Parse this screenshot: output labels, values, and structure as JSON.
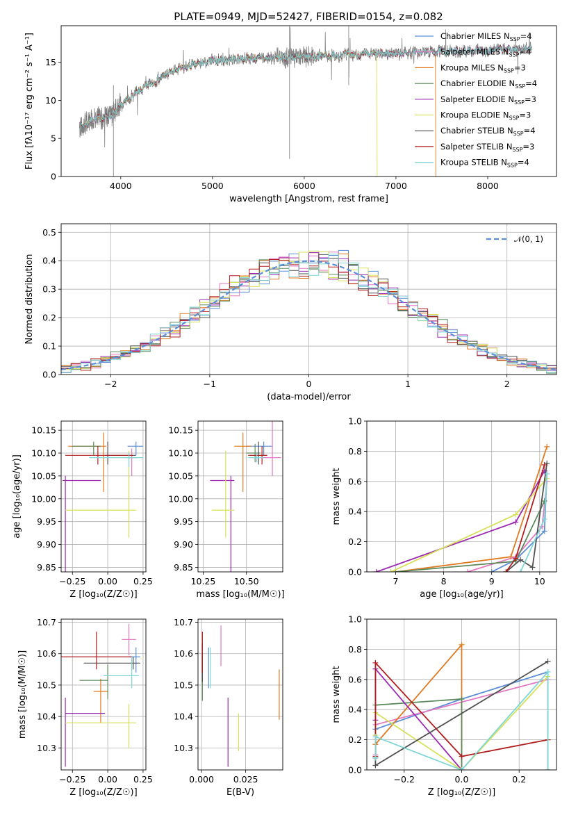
{
  "figure": {
    "title": "PLATE=0949, MJD=52427, FIBERID=0154, z=0.082"
  },
  "colors": {
    "data": "#7f7f7f",
    "gauss": "#5b8ed6",
    "grid": "#b0b0b0"
  },
  "models": [
    {
      "name": "Chabrier MILES",
      "nssp": "4",
      "color": "#5b8ed6"
    },
    {
      "name": "Salpeter MILES",
      "nssp": "4",
      "color": "#e377c2"
    },
    {
      "name": "Kroupa MILES",
      "nssp": "3",
      "color": "#e07a22"
    },
    {
      "name": "Chabrier ELODIE",
      "nssp": "4",
      "color": "#5c8a5c"
    },
    {
      "name": "Salpeter ELODIE",
      "nssp": "3",
      "color": "#9b2bb0"
    },
    {
      "name": "Kroupa ELODIE",
      "nssp": "3",
      "color": "#d6e05a"
    },
    {
      "name": "Chabrier STELIB",
      "nssp": "4",
      "color": "#505050"
    },
    {
      "name": "Salpeter STELIB",
      "nssp": "3",
      "color": "#b01e1e"
    },
    {
      "name": "Kroupa STELIB",
      "nssp": "4",
      "color": "#7fd6d6"
    }
  ],
  "legend_ssp": "SSP",
  "legend_prefix": "N",
  "legend_eq": "=",
  "chart_data": [
    {
      "id": "spectrum",
      "type": "line",
      "xlabel": "wavelength [Angstrom, rest frame]",
      "ylabel": "Flux [fλ10⁻¹⁷ erg cm⁻² s⁻¹ A⁻¹]",
      "xlim": [
        3350,
        8750
      ],
      "ylim": [
        0,
        19.8
      ],
      "xticks": [
        4000,
        5000,
        6000,
        7000,
        8000
      ],
      "yticks": [
        0,
        5,
        10,
        15
      ],
      "grid": false,
      "legend": "right",
      "continuum": [
        [
          3550,
          6.5
        ],
        [
          3700,
          7.5
        ],
        [
          3900,
          8.0
        ],
        [
          4000,
          9.3
        ],
        [
          4100,
          10.3
        ],
        [
          4300,
          12.0
        ],
        [
          4500,
          13.5
        ],
        [
          4800,
          14.7
        ],
        [
          5000,
          15.2
        ],
        [
          5300,
          15.5
        ],
        [
          5700,
          15.6
        ],
        [
          6000,
          15.7
        ],
        [
          6300,
          15.9
        ],
        [
          6700,
          16.0
        ],
        [
          7000,
          16.2
        ],
        [
          7500,
          16.4
        ],
        [
          8000,
          16.6
        ],
        [
          8500,
          16.8
        ]
      ]
    },
    {
      "id": "residuals",
      "type": "line",
      "xlabel": "(data-model)/error",
      "ylabel": "Normed distribution",
      "xlim": [
        -2.5,
        2.5
      ],
      "ylim": [
        0,
        0.53
      ],
      "xticks": [
        -2,
        -1,
        0,
        1,
        2
      ],
      "yticks": [
        0.0,
        0.1,
        0.2,
        0.3,
        0.4,
        0.5
      ],
      "grid": true,
      "legend": "upper right",
      "gauss_label": "𝒩(0, 1)",
      "bin_width": 0.1
    },
    {
      "id": "age-vs-Z",
      "type": "scatter",
      "xlabel": "Z [log₁₀(Z/Z☉)]",
      "ylabel": "age  [log₁₀(age/yr)]",
      "xlim": [
        -0.33,
        0.27
      ],
      "ylim": [
        9.84,
        10.17
      ],
      "xticks": [
        -0.25,
        0.0,
        0.25
      ],
      "yticks": [
        9.85,
        9.9,
        9.95,
        10.0,
        10.05,
        10.1,
        10.15
      ],
      "grid": true,
      "points": [
        {
          "x": 0.2,
          "y": 10.115,
          "xerr": [
            0.06,
            0.05
          ],
          "yerr": [
            0.02,
            0.01
          ]
        },
        {
          "x": 0.17,
          "y": 10.09,
          "xerr": [
            0.05,
            0.04
          ],
          "yerr": [
            0.04,
            0.02
          ]
        },
        {
          "x": -0.03,
          "y": 10.115,
          "xerr": [
            0.25,
            0.02
          ],
          "yerr": [
            0.1,
            0.03
          ]
        },
        {
          "x": -0.1,
          "y": 10.115,
          "xerr": [
            0.15,
            0.05
          ],
          "yerr": [
            0.02,
            0.01
          ]
        },
        {
          "x": -0.3,
          "y": 10.04,
          "xerr": [
            0.02,
            0.25
          ],
          "yerr": [
            0.2,
            0.01
          ]
        },
        {
          "x": 0.15,
          "y": 9.975,
          "xerr": [
            0.45,
            0.05
          ],
          "yerr": [
            0.06,
            0.13
          ]
        },
        {
          "x": 0.0,
          "y": 10.095,
          "xerr": [
            0.02,
            0.2
          ],
          "yerr": [
            0.02,
            0.03
          ]
        },
        {
          "x": -0.07,
          "y": 10.095,
          "xerr": [
            0.23,
            0.25
          ],
          "yerr": [
            0.02,
            0.02
          ]
        },
        {
          "x": 0.15,
          "y": 10.09,
          "xerr": [
            0.28,
            0.1
          ],
          "yerr": [
            0.02,
            0.01
          ]
        }
      ]
    },
    {
      "id": "age-vs-mass",
      "type": "scatter",
      "xlabel": "mass [log₁₀(M/M☉)]",
      "ylabel": "",
      "xlim": [
        10.22,
        10.71
      ],
      "ylim": [
        9.84,
        10.17
      ],
      "xticks": [
        10.25,
        10.5
      ],
      "yticks": [
        9.85,
        9.9,
        9.95,
        10.0,
        10.05,
        10.1,
        10.15
      ],
      "grid": true,
      "points": [
        {
          "x": 10.6,
          "y": 10.115,
          "xerr": [
            0.1,
            0.05
          ],
          "yerr": [
            0.02,
            0.01
          ]
        },
        {
          "x": 10.65,
          "y": 10.09,
          "xerr": [
            0.06,
            0.05
          ],
          "yerr": [
            0.04,
            0.12
          ]
        },
        {
          "x": 10.48,
          "y": 10.115,
          "xerr": [
            0.05,
            0.05
          ],
          "yerr": [
            0.1,
            0.03
          ]
        },
        {
          "x": 10.55,
          "y": 10.1,
          "xerr": [
            0.05,
            0.03
          ],
          "yerr": [
            0.02,
            0.02
          ]
        },
        {
          "x": 10.41,
          "y": 10.04,
          "xerr": [
            0.12,
            0.02
          ],
          "yerr": [
            0.2,
            0.01
          ]
        },
        {
          "x": 10.38,
          "y": 9.975,
          "xerr": [
            0.08,
            0.05
          ],
          "yerr": [
            0.06,
            0.13
          ]
        },
        {
          "x": 10.57,
          "y": 10.095,
          "xerr": [
            0.05,
            0.05
          ],
          "yerr": [
            0.02,
            0.03
          ]
        },
        {
          "x": 10.59,
          "y": 10.095,
          "xerr": [
            0.08,
            0.03
          ],
          "yerr": [
            0.02,
            0.02
          ]
        },
        {
          "x": 10.56,
          "y": 10.09,
          "xerr": [
            0.05,
            0.04
          ],
          "yerr": [
            0.01,
            0.01
          ]
        }
      ]
    },
    {
      "id": "weight-vs-age",
      "type": "line",
      "xlabel": "age  [log₁₀(age/yr)]",
      "ylabel": "mass weight",
      "xlim": [
        6.4,
        10.35
      ],
      "ylim": [
        0,
        1
      ],
      "xticks": [
        7,
        8,
        9,
        10
      ],
      "yticks": [
        0.0,
        0.2,
        0.4,
        0.6,
        0.8,
        1.0
      ],
      "grid": true,
      "series": [
        {
          "x": [
            9.0,
            9.5,
            10.1,
            10.15
          ],
          "y": [
            0.0,
            0.08,
            0.27,
            0.65
          ]
        },
        {
          "x": [
            8.5,
            9.5,
            10.05,
            10.15
          ],
          "y": [
            0.0,
            0.1,
            0.3,
            0.6
          ]
        },
        {
          "x": [
            7.0,
            9.4,
            10.15
          ],
          "y": [
            0.0,
            0.1,
            0.83
          ]
        },
        {
          "x": [
            7.0,
            9.5,
            10.1
          ],
          "y": [
            0.0,
            0.07,
            0.47
          ]
        },
        {
          "x": [
            6.6,
            9.5,
            10.1
          ],
          "y": [
            0.0,
            0.33,
            0.67
          ]
        },
        {
          "x": [
            6.9,
            9.5,
            10.15
          ],
          "y": [
            0.0,
            0.38,
            0.62
          ]
        },
        {
          "x": [
            9.3,
            9.6,
            9.85,
            10.15
          ],
          "y": [
            0.0,
            0.08,
            0.03,
            0.72
          ]
        },
        {
          "x": [
            9.3,
            9.5,
            10.1
          ],
          "y": [
            0.0,
            0.09,
            0.71
          ]
        },
        {
          "x": [
            9.6,
            10.1,
            10.15
          ],
          "y": [
            0.0,
            0.35,
            0.65
          ]
        }
      ]
    },
    {
      "id": "mass-vs-Z",
      "type": "scatter",
      "xlabel": "Z [log₁₀(Z/Z☉)]",
      "ylabel": "mass [log₁₀(M/M☉)]",
      "xlim": [
        -0.33,
        0.27
      ],
      "ylim": [
        10.23,
        10.71
      ],
      "xticks": [
        -0.25,
        0.0,
        0.25
      ],
      "yticks": [
        10.3,
        10.4,
        10.5,
        10.6,
        10.7
      ],
      "grid": true,
      "points": [
        {
          "x": 0.2,
          "y": 10.59,
          "xerr": [
            0.05,
            0.03
          ],
          "yerr": [
            0.05,
            0.03
          ]
        },
        {
          "x": 0.15,
          "y": 10.645,
          "xerr": [
            0.05,
            0.05
          ],
          "yerr": [
            0.05,
            0.05
          ]
        },
        {
          "x": -0.05,
          "y": 10.48,
          "xerr": [
            0.05,
            0.05
          ],
          "yerr": [
            0.1,
            0.04
          ]
        },
        {
          "x": 0.0,
          "y": 10.515,
          "xerr": [
            0.2,
            0.0
          ],
          "yerr": [
            0.06,
            0.05
          ]
        },
        {
          "x": -0.3,
          "y": 10.41,
          "xerr": [
            0.0,
            0.28
          ],
          "yerr": [
            0.17,
            0.05
          ]
        },
        {
          "x": 0.15,
          "y": 10.38,
          "xerr": [
            0.45,
            0.05
          ],
          "yerr": [
            0.08,
            0.06
          ]
        },
        {
          "x": 0.18,
          "y": 10.57,
          "xerr": [
            0.35,
            0.05
          ],
          "yerr": [
            0.02,
            0.02
          ]
        },
        {
          "x": -0.08,
          "y": 10.59,
          "xerr": [
            0.25,
            0.25
          ],
          "yerr": [
            0.04,
            0.08
          ]
        },
        {
          "x": 0.17,
          "y": 10.53,
          "xerr": [
            0.2,
            0.05
          ],
          "yerr": [
            0.04,
            0.06
          ]
        }
      ]
    },
    {
      "id": "mass-vs-EBV",
      "type": "scatter",
      "xlabel": "E(B-V)",
      "ylabel": "",
      "xlim": [
        -0.002,
        0.046
      ],
      "ylim": [
        10.23,
        10.71
      ],
      "xticks": [
        0.0,
        0.025
      ],
      "yticks": [
        10.3,
        10.4,
        10.5,
        10.6,
        10.7
      ],
      "grid": true,
      "points": [
        {
          "x": 0.004,
          "y": 10.56,
          "xerr": [
            0,
            0
          ],
          "yerr": [
            0.07,
            0.06
          ]
        },
        {
          "x": 0.011,
          "y": 10.64,
          "xerr": [
            0,
            0
          ],
          "yerr": [
            0.08,
            0.05
          ]
        },
        {
          "x": 0.044,
          "y": 10.47,
          "xerr": [
            0,
            0
          ],
          "yerr": [
            0.08,
            0.08
          ]
        },
        {
          "x": 0.0005,
          "y": 10.53,
          "xerr": [
            0,
            0
          ],
          "yerr": [
            0.08,
            0.07
          ]
        },
        {
          "x": 0.015,
          "y": 10.36,
          "xerr": [
            0,
            0
          ],
          "yerr": [
            0.12,
            0.1
          ]
        },
        {
          "x": 0.021,
          "y": 10.35,
          "xerr": [
            0,
            0
          ],
          "yerr": [
            0.06,
            0.06
          ]
        },
        {
          "x": 0.0005,
          "y": 10.58,
          "xerr": [
            0,
            0
          ],
          "yerr": [
            0.07,
            0.05
          ]
        },
        {
          "x": 0.0005,
          "y": 10.6,
          "xerr": [
            0,
            0
          ],
          "yerr": [
            0.06,
            0.07
          ]
        },
        {
          "x": 0.005,
          "y": 10.55,
          "xerr": [
            0,
            0
          ],
          "yerr": [
            0.06,
            0.07
          ]
        }
      ]
    },
    {
      "id": "weight-vs-Z",
      "type": "line",
      "xlabel": "Z [log₁₀(Z/Z☉)]",
      "ylabel": "mass weight",
      "xlim": [
        -0.33,
        0.33
      ],
      "ylim": [
        0,
        1
      ],
      "xticks": [
        -0.2,
        0.0,
        0.2
      ],
      "yticks": [
        0.0,
        0.2,
        0.4,
        0.6,
        0.8,
        1.0
      ],
      "grid": true,
      "series": [
        {
          "x": [
            -0.3,
            -0.3,
            0.0,
            0.3
          ],
          "y": [
            0.08,
            0.27,
            0.47,
            0.65
          ]
        },
        {
          "x": [
            -0.3,
            -0.3,
            0.3,
            0.3
          ],
          "y": [
            0.1,
            0.3,
            0.6,
            0.0
          ]
        },
        {
          "x": [
            -0.3,
            -0.3,
            0.0,
            0.0
          ],
          "y": [
            0.17,
            0.17,
            0.83,
            0.0
          ]
        },
        {
          "x": [
            -0.3,
            -0.3,
            0.0,
            0.0
          ],
          "y": [
            0.08,
            0.43,
            0.47,
            0.0
          ]
        },
        {
          "x": [
            -0.3,
            -0.3,
            0.0
          ],
          "y": [
            0.33,
            0.67,
            0.0
          ]
        },
        {
          "x": [
            -0.3,
            -0.3,
            0.0,
            0.3
          ],
          "y": [
            0.23,
            0.38,
            0.0,
            0.62
          ]
        },
        {
          "x": [
            -0.3,
            -0.3,
            0.3
          ],
          "y": [
            0.08,
            0.03,
            0.72
          ]
        },
        {
          "x": [
            -0.3,
            -0.3,
            0.0,
            0.3
          ],
          "y": [
            0.09,
            0.71,
            0.09,
            0.2
          ]
        },
        {
          "x": [
            -0.3,
            -0.3,
            0.0,
            0.3,
            0.3
          ],
          "y": [
            0.08,
            0.22,
            0.0,
            0.65,
            0.0
          ]
        }
      ]
    }
  ]
}
